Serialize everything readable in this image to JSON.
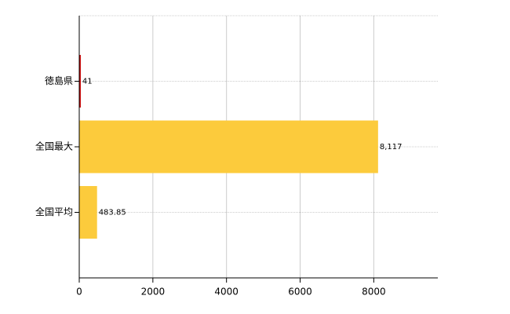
{
  "chart_data": {
    "type": "bar",
    "orientation": "horizontal",
    "categories": [
      "徳島県",
      "全国最大",
      "全国平均"
    ],
    "values": [
      41,
      8117,
      483.85
    ],
    "value_labels": [
      "41",
      "8,117",
      "483.85"
    ],
    "colors": [
      "#cc0000",
      "#fccb3c",
      "#fccb3c"
    ],
    "xlim": [
      0,
      9740
    ],
    "xticks": [
      0,
      2000,
      4000,
      6000,
      8000
    ],
    "grid": true
  }
}
